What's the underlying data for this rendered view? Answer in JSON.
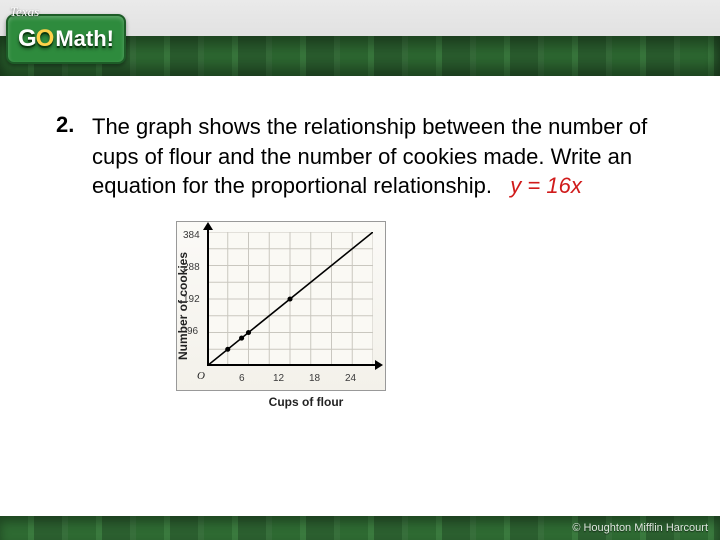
{
  "header": {
    "state_label": "Texas",
    "logo_go": "G",
    "logo_o": "O",
    "logo_math": "Math!",
    "stripe_colors": [
      "#2e6a32",
      "#3a7a3e",
      "#2b5f2f",
      "#376f3b"
    ],
    "badge_bg": "#2e8b3d"
  },
  "problem": {
    "number": "2.",
    "text": "The graph shows the relationship between the number of cups of flour and the number of cookies made. Write an equation for the proportional relationship.",
    "answer": "y = 16x",
    "answer_color": "#d01b1b"
  },
  "chart": {
    "type": "line",
    "xlabel": "Cups of flour",
    "ylabel": "Number of cookies",
    "origin_label": "O",
    "xlim": [
      0,
      24
    ],
    "ylim": [
      0,
      384
    ],
    "xticks": [
      6,
      12,
      18,
      24
    ],
    "yticks": [
      96,
      192,
      288,
      384
    ],
    "grid_color": "#c9c7bf",
    "background_color": "#faf9f4",
    "frame_border": "#999999",
    "line_color": "#000000",
    "line_width": 1.6,
    "points": [
      {
        "x": 3,
        "y": 48
      },
      {
        "x": 5,
        "y": 80
      },
      {
        "x": 6,
        "y": 96
      },
      {
        "x": 12,
        "y": 192
      }
    ],
    "point_color": "#000000",
    "point_radius": 2.6,
    "tick_fontsize": 10,
    "label_fontsize": 12
  },
  "footer": {
    "copyright": "© Houghton Mifflin Harcourt"
  }
}
